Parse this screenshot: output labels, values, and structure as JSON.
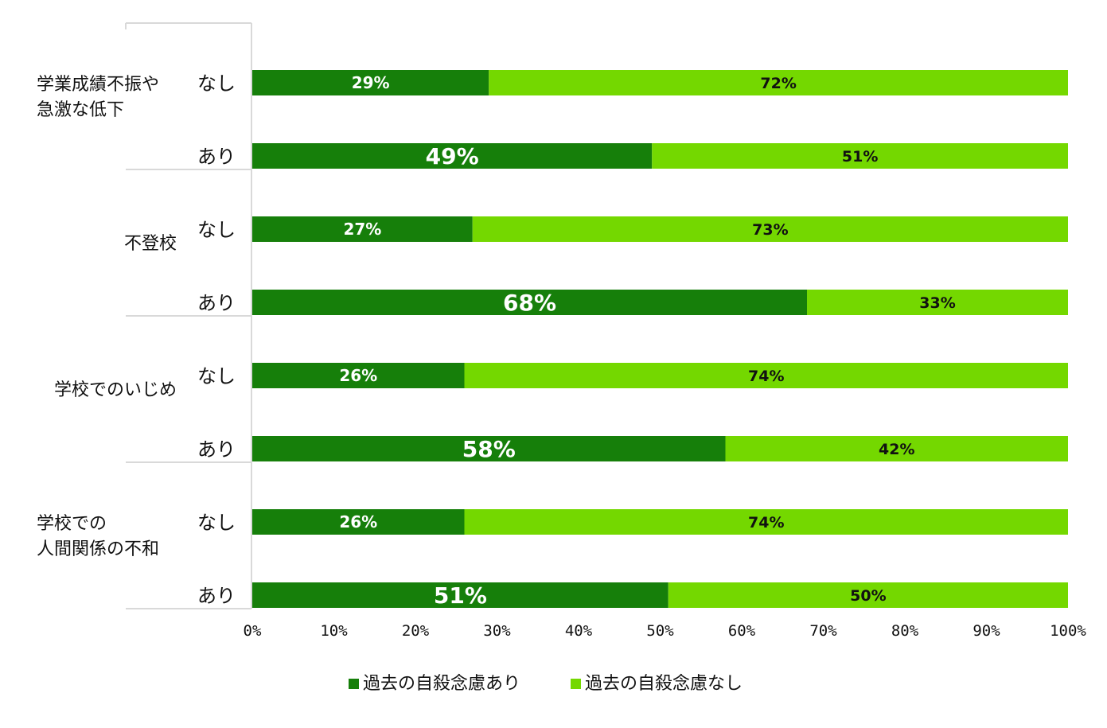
{
  "chart_data": {
    "type": "bar",
    "orientation": "horizontal-stacked-100",
    "title": "",
    "xlabel": "",
    "ylabel": "",
    "xlim": [
      0,
      100
    ],
    "x_ticks": [
      "0%",
      "10%",
      "20%",
      "30%",
      "40%",
      "50%",
      "60%",
      "70%",
      "80%",
      "90%",
      "100%"
    ],
    "grid": false,
    "legend_position": "bottom",
    "colors": {
      "dark": "#167f0a",
      "light": "#74d800",
      "axis": "#d9d9d9"
    },
    "series": [
      {
        "name": "過去の自殺念慮あり",
        "color": "#167f0a"
      },
      {
        "name": "過去の自殺念慮なし",
        "color": "#74d800"
      }
    ],
    "groups": [
      {
        "label_lines": [
          "学業成績不振や",
          "急激な低下"
        ],
        "bars": [
          {
            "label": "なし",
            "values": [
              29,
              72
            ],
            "display": [
              "29%",
              "72%"
            ]
          },
          {
            "label": "あり",
            "values": [
              49,
              51
            ],
            "display": [
              "49%",
              "51%"
            ]
          }
        ]
      },
      {
        "label_lines": [
          "不登校"
        ],
        "bars": [
          {
            "label": "なし",
            "values": [
              27,
              73
            ],
            "display": [
              "27%",
              "73%"
            ]
          },
          {
            "label": "あり",
            "values": [
              68,
              33
            ],
            "display": [
              "68%",
              "33%"
            ]
          }
        ]
      },
      {
        "label_lines": [
          "学校でのいじめ"
        ],
        "bars": [
          {
            "label": "なし",
            "values": [
              26,
              74
            ],
            "display": [
              "26%",
              "74%"
            ]
          },
          {
            "label": "あり",
            "values": [
              58,
              42
            ],
            "display": [
              "58%",
              "42%"
            ]
          }
        ]
      },
      {
        "label_lines": [
          "学校での",
          "人間関係の不和"
        ],
        "bars": [
          {
            "label": "なし",
            "values": [
              26,
              74
            ],
            "display": [
              "26%",
              "74%"
            ]
          },
          {
            "label": "あり",
            "values": [
              51,
              50
            ],
            "display": [
              "51%",
              "50%"
            ]
          }
        ]
      }
    ]
  }
}
